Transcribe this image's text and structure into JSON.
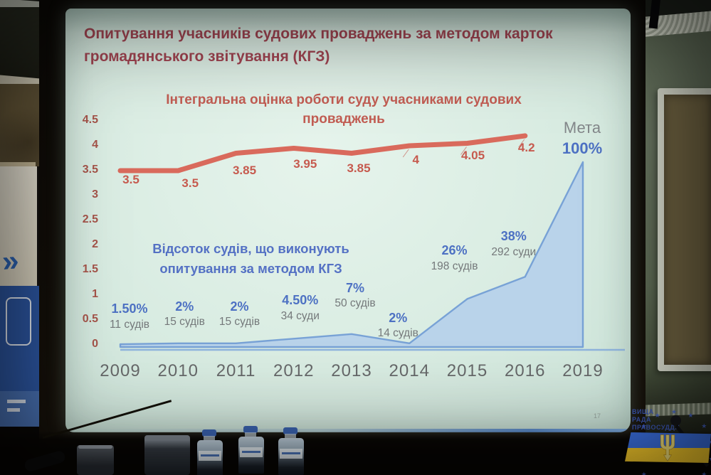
{
  "slide": {
    "title": "Опитування учасників судових проваджень за методом карток громадянського звітування (КГЗ)",
    "page_number": "17"
  },
  "chart_data": {
    "type": "combo",
    "categories": [
      "2009",
      "2010",
      "2011",
      "2012",
      "2013",
      "2014",
      "2015",
      "2016",
      "2019"
    ],
    "series": [
      {
        "name": "Інтегральна оцінка роботи суду учасниками судових проваджень",
        "type": "line",
        "color": "#d96a5c",
        "values": [
          3.5,
          3.5,
          3.85,
          3.95,
          3.85,
          4.0,
          4.05,
          4.2
        ],
        "value_labels": [
          "3.5",
          "3.5",
          "3.85",
          "3.95",
          "3.85",
          "4",
          "4.05",
          "4.2"
        ]
      },
      {
        "name": "Відсоток судів, що виконують опитування за методом КГЗ",
        "type": "area",
        "line_color": "#78a2d6",
        "fill_color": "#b7d2ea",
        "values_percent": [
          1.5,
          2,
          2,
          4.5,
          7,
          2,
          26,
          38,
          100
        ],
        "point_labels": [
          {
            "percent": "1.50%",
            "courts": "11 судів"
          },
          {
            "percent": "2%",
            "courts": "15 судів"
          },
          {
            "percent": "2%",
            "courts": "15 судів"
          },
          {
            "percent": "4.50%",
            "courts": "34 суди"
          },
          {
            "percent": "7%",
            "courts": "50 судів"
          },
          {
            "percent": "2%",
            "courts": "14 судів"
          },
          {
            "percent": "26%",
            "courts": "198 судів"
          },
          {
            "percent": "38%",
            "courts": "292 суди"
          }
        ]
      }
    ],
    "score_axis": {
      "ticks": [
        "4.5",
        "4",
        "3.5",
        "3",
        "2.5",
        "2",
        "1.5",
        "1",
        "0.5",
        "0"
      ],
      "min": 0,
      "max": 4.5
    },
    "goal": {
      "label": "Мета",
      "value": "100%"
    },
    "grid": false,
    "legend_position": "none"
  },
  "colors": {
    "slide_bg": "#d9ece2",
    "title": "#a24552",
    "line_title": "#c25d53",
    "score_line": "#d96a5c",
    "score_ticks": "#a6544a",
    "percent_text": "#4d71c3",
    "courts_text": "#74787a",
    "year_text": "#67696a",
    "area_fill": "#b7d2ea",
    "area_line": "#78a2d6",
    "flag_blue": "#3b70e0",
    "flag_yellow": "#f6ca2b"
  },
  "watermark": {
    "lines": [
      "ВИЩА",
      "РАДА",
      "ПРАВОСУДДЯ"
    ]
  },
  "banner": {
    "chevrons": "»"
  }
}
